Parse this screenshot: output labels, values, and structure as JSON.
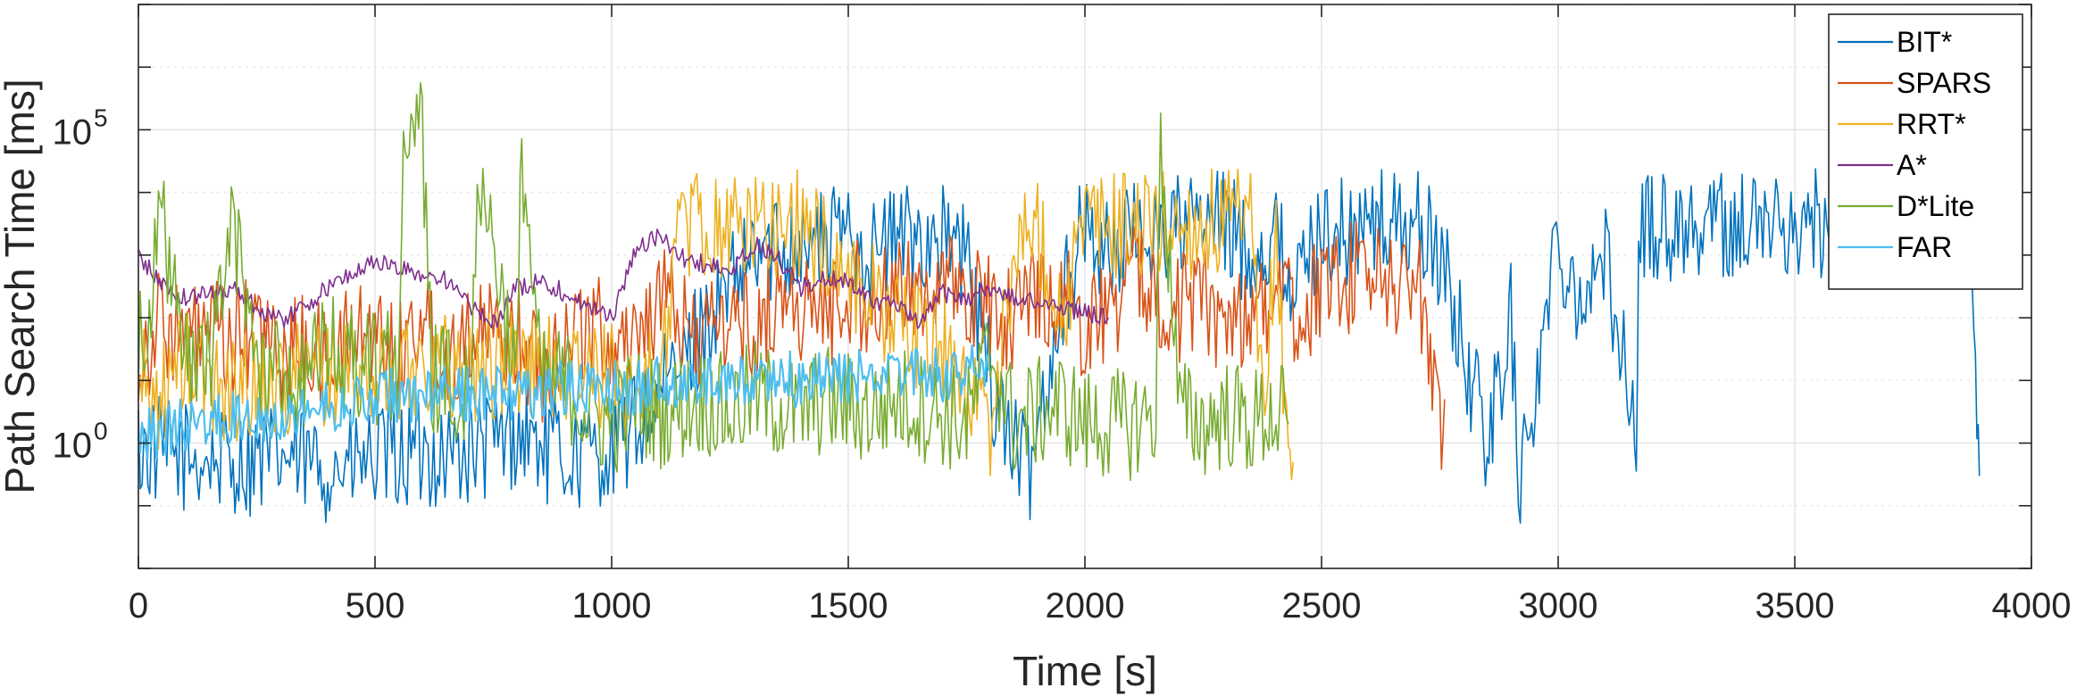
{
  "chart_data": {
    "type": "line",
    "title": "",
    "xlabel": "Time [s]",
    "ylabel": "Path Search Time [ms]",
    "xlim": [
      0,
      4000
    ],
    "ylim": [
      0.01,
      10000000
    ],
    "yscale": "log",
    "grid": true,
    "legend_position": "top-right",
    "x_ticks": [
      0,
      500,
      1000,
      1500,
      2000,
      2500,
      3000,
      3500,
      4000
    ],
    "x_tick_labels": [
      "0",
      "500",
      "1000",
      "1500",
      "2000",
      "2500",
      "3000",
      "3500",
      "4000"
    ],
    "y_tick_labels": [
      {
        "value": 1,
        "base": "10",
        "exp": "0"
      },
      {
        "value": 100000,
        "base": "10",
        "exp": "5"
      }
    ],
    "series": [
      {
        "name": "BIT*",
        "color": "#0072BD",
        "x": [
          0,
          100,
          200,
          300,
          400,
          500,
          600,
          700,
          800,
          900,
          1000,
          1100,
          1200,
          1300,
          1400,
          1450,
          1500,
          1550,
          1600,
          1700,
          1750,
          1800,
          1850,
          1880,
          1950,
          2000,
          2050,
          2100,
          2200,
          2300,
          2350,
          2400,
          2450,
          2500,
          2550,
          2600,
          2650,
          2700,
          2750,
          2800,
          2850,
          2900,
          2920,
          3000,
          3050,
          3100,
          3150,
          3165,
          3170,
          3500,
          3870,
          3875,
          3885,
          3890
        ],
        "y": [
          0.8,
          0.6,
          0.5,
          0.6,
          0.4,
          0.5,
          0.7,
          0.7,
          1.5,
          0.6,
          0.7,
          5,
          80,
          900,
          2000,
          1500,
          3000,
          1000,
          2000,
          2000,
          800,
          10,
          1,
          0.3,
          200,
          3000,
          1000,
          2000,
          3000,
          3000,
          1000,
          2000,
          300,
          3000,
          2000,
          3000,
          3000,
          3000,
          1000,
          30,
          1,
          100,
          0.2,
          2000,
          200,
          800,
          10,
          0.2,
          3000,
          3000,
          3000,
          1000,
          0.25,
          0.3
        ]
      },
      {
        "name": "SPARS",
        "color": "#D95319",
        "x": [
          0,
          50,
          100,
          150,
          200,
          250,
          300,
          350,
          400,
          450,
          500,
          550,
          600,
          650,
          700,
          750,
          800,
          850,
          900,
          950,
          1000,
          1050,
          1100,
          1150,
          1200,
          1250,
          1300,
          1350,
          1400,
          1450,
          1500,
          1550,
          1600,
          1650,
          1700,
          1750,
          1800,
          1850,
          1900,
          1950,
          2000,
          2050,
          2100,
          2150,
          2200,
          2250,
          2300,
          2350,
          2400,
          2450,
          2500,
          2550,
          2600,
          2650,
          2700,
          2730,
          2750,
          2760
        ],
        "y": [
          20,
          100,
          40,
          60,
          30,
          80,
          20,
          40,
          15,
          50,
          60,
          30,
          100,
          20,
          80,
          40,
          60,
          15,
          50,
          80,
          40,
          60,
          200,
          80,
          50,
          100,
          60,
          200,
          150,
          100,
          300,
          150,
          200,
          400,
          300,
          200,
          150,
          100,
          300,
          200,
          80,
          150,
          400,
          300,
          150,
          200,
          80,
          150,
          200,
          100,
          300,
          400,
          500,
          300,
          400,
          50,
          2,
          5
        ]
      },
      {
        "name": "RRT*",
        "color": "#EDB120",
        "x": [
          0,
          50,
          100,
          150,
          200,
          300,
          400,
          500,
          600,
          700,
          800,
          900,
          1000,
          1100,
          1140,
          1200,
          1300,
          1400,
          1500,
          1600,
          1700,
          1800,
          1850,
          1900,
          1950,
          2000,
          2050,
          2100,
          2150,
          2200,
          2300,
          2350,
          2380,
          2400,
          2430,
          2440
        ],
        "y": [
          10,
          5,
          20,
          10,
          8,
          10,
          15,
          10,
          20,
          15,
          20,
          15,
          10,
          8,
          3000,
          3000,
          3000,
          3000,
          500,
          100,
          30,
          2,
          1000,
          3000,
          100,
          3000,
          3000,
          3000,
          3000,
          3000,
          3000,
          3000,
          1,
          3000,
          1,
          0.5
        ]
      },
      {
        "name": "A*",
        "color": "#7E2F8E",
        "x": [
          0,
          30,
          60,
          100,
          150,
          200,
          250,
          300,
          350,
          400,
          450,
          500,
          550,
          600,
          650,
          700,
          750,
          800,
          850,
          900,
          950,
          1000,
          1050,
          1100,
          1150,
          1200,
          1250,
          1300,
          1350,
          1400,
          1450,
          1500,
          1550,
          1600,
          1650,
          1700,
          1750,
          1800,
          1850,
          1900,
          1950,
          2000,
          2050
        ],
        "y": [
          1000,
          500,
          300,
          200,
          250,
          300,
          150,
          90,
          150,
          300,
          500,
          800,
          600,
          500,
          400,
          150,
          80,
          300,
          400,
          250,
          150,
          100,
          1200,
          2000,
          900,
          700,
          500,
          1500,
          900,
          300,
          400,
          400,
          200,
          150,
          80,
          250,
          200,
          300,
          200,
          180,
          150,
          120,
          100
        ]
      },
      {
        "name": "D*Lite",
        "color": "#77AC30",
        "x": [
          0,
          50,
          100,
          150,
          200,
          250,
          300,
          350,
          400,
          450,
          500,
          550,
          560,
          600,
          620,
          700,
          720,
          800,
          810,
          850,
          900,
          950,
          1000,
          1050,
          1100,
          1150,
          1200,
          1250,
          1300,
          1350,
          1400,
          1450,
          1500,
          1550,
          1600,
          1650,
          1700,
          1750,
          1800,
          1850,
          1900,
          1950,
          2000,
          2050,
          2100,
          2150,
          2160,
          2200,
          2250,
          2300,
          2350,
          2400,
          2430
        ],
        "y": [
          30,
          3000,
          15,
          20,
          3000,
          20,
          15,
          10,
          30,
          20,
          15,
          20,
          90000,
          90000,
          10,
          8,
          30000,
          10,
          60000,
          8,
          10,
          3,
          2,
          5,
          3,
          4,
          5,
          3,
          6,
          4,
          3,
          5,
          4,
          3,
          5,
          4,
          3,
          2,
          30,
          2,
          3,
          4,
          2,
          2,
          2,
          3,
          90000,
          3,
          2,
          3,
          2,
          3,
          2
        ]
      },
      {
        "name": "FAR",
        "color": "#4DBEEE",
        "x": [
          0,
          50,
          100,
          150,
          200,
          250,
          300,
          350,
          400,
          450,
          500,
          550,
          600,
          650,
          700,
          750,
          800,
          850,
          900,
          950,
          1000,
          1050,
          1100,
          1150,
          1200,
          1250,
          1300,
          1350,
          1400,
          1450,
          1500,
          1550,
          1600,
          1650,
          1700,
          1750,
          1800
        ],
        "y": [
          1.5,
          1.5,
          2,
          2,
          2.5,
          3,
          3,
          3.5,
          4,
          4,
          5,
          6,
          5,
          6,
          6,
          7,
          6,
          7,
          8,
          7,
          8,
          7,
          9,
          9,
          10,
          9,
          10,
          11,
          10,
          12,
          11,
          12,
          12,
          13,
          12,
          13,
          14
        ]
      }
    ]
  }
}
